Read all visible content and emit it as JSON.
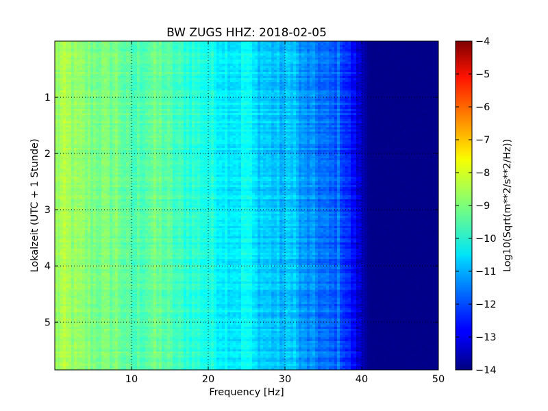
{
  "chart_data": {
    "type": "heatmap",
    "title": "BW ZUGS HHZ: 2018-02-05",
    "xlabel": "Frequency [Hz]",
    "ylabel": "Lokalzeit (UTC + 1 Stunde)",
    "xlim": [
      0,
      50
    ],
    "ylim": [
      5.85,
      0
    ],
    "x_ticks": [
      10,
      20,
      30,
      40,
      50
    ],
    "y_ticks": [
      1,
      2,
      3,
      4,
      5
    ],
    "grid": true,
    "colormap": "jet",
    "colorbar": {
      "label": "Log10(Sqrt(m**2/s**2/Hz))",
      "range": [
        -14,
        -4
      ],
      "ticks": [
        -4,
        -5,
        -6,
        -7,
        -8,
        -9,
        -10,
        -11,
        -12,
        -13,
        -14
      ]
    },
    "frequency_profile": {
      "frequency_hz": [
        0,
        1,
        2,
        3,
        5,
        7,
        8,
        10,
        12,
        13,
        14,
        16,
        18,
        20,
        22,
        24,
        25,
        26,
        28,
        30,
        31,
        32,
        34,
        36,
        37,
        38,
        39,
        40,
        41,
        50
      ],
      "log10_amplitude": [
        -8.8,
        -8.6,
        -8.7,
        -8.9,
        -9.0,
        -9.1,
        -9.0,
        -9.6,
        -9.3,
        -9.2,
        -9.3,
        -9.7,
        -9.8,
        -10.0,
        -10.3,
        -10.4,
        -10.1,
        -10.6,
        -10.8,
        -11.0,
        -10.6,
        -11.3,
        -11.5,
        -11.9,
        -11.7,
        -12.3,
        -12.8,
        -13.4,
        -13.9,
        -13.9
      ]
    },
    "notes": []
  }
}
